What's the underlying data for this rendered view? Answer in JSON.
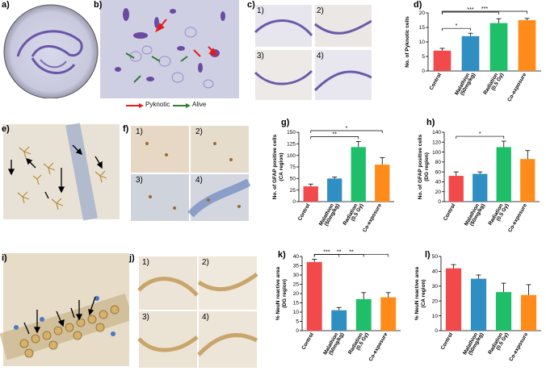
{
  "panel_labels": {
    "a": "a)",
    "b": "b)",
    "c": "c)",
    "d": "d)",
    "e": "e)",
    "f": "f)",
    "g": "g)",
    "h": "h)",
    "i": "i)",
    "j": "j)",
    "k": "k)",
    "l": "l)"
  },
  "sub_labels": {
    "s1": "1)",
    "s2": "2)",
    "s3": "3)",
    "s4": "4)"
  },
  "legend_b": {
    "pyknotic": "Pyknotic",
    "alive": "Alive"
  },
  "colors": {
    "control": "#f24a4a",
    "malathion": "#2f8ec2",
    "radiation": "#1fbf6a",
    "coexposure": "#ff8c1a",
    "pyknotic_arrow": "#e31b1b",
    "alive_arrow": "#2e7d32",
    "stain_purple": "#7a5ca8",
    "dab_brown": "#9c6b30"
  },
  "icons": {
    "arrow": "arrow-icon"
  },
  "chart_data": [
    {
      "id": "d",
      "type": "bar",
      "categories": [
        "Control",
        "Malathion\n(50mg/kg)",
        "Radiation\n(0.5 Gy)",
        "Co-exposure"
      ],
      "values": [
        7,
        12,
        16.5,
        17.5
      ],
      "errors": [
        0.8,
        1.0,
        1.5,
        0.6
      ],
      "ylabel": "No. of Pyknotic cells",
      "ylim": [
        0,
        20
      ],
      "yticks": [
        0,
        5,
        10,
        15,
        20
      ],
      "significance": [
        {
          "from": 0,
          "to": 1,
          "label": "*"
        },
        {
          "from": 0,
          "to": 2,
          "label": "***"
        },
        {
          "from": 0,
          "to": 3,
          "label": "***"
        }
      ]
    },
    {
      "id": "g",
      "type": "bar",
      "categories": [
        "Control",
        "Malathion\n(50mg/kg)",
        "Radiation\n(0.5 Gy)",
        "Co-exposure"
      ],
      "values": [
        33,
        50,
        118,
        80
      ],
      "errors": [
        5,
        3,
        12,
        15
      ],
      "ylabel": "No. of GFAP positive cells\n(CA region)",
      "ylim": [
        0,
        150
      ],
      "yticks": [
        0,
        25,
        50,
        75,
        100,
        125,
        150
      ],
      "significance": [
        {
          "from": 0,
          "to": 2,
          "label": "**"
        },
        {
          "from": 0,
          "to": 3,
          "label": "*"
        }
      ]
    },
    {
      "id": "h",
      "type": "bar",
      "categories": [
        "Control",
        "Malathion\n(50mg/kg)",
        "Radiation\n(0.5 Gy)",
        "Co-exposure"
      ],
      "values": [
        52,
        56,
        110,
        86
      ],
      "errors": [
        8,
        4,
        12,
        17
      ],
      "ylabel": "No. of GFAP positive cells\n(DG region)",
      "ylim": [
        0,
        140
      ],
      "yticks": [
        0,
        20,
        40,
        60,
        80,
        100,
        120,
        140
      ],
      "significance": [
        {
          "from": 0,
          "to": 2,
          "label": "*"
        }
      ]
    },
    {
      "id": "k",
      "type": "bar",
      "categories": [
        "Control",
        "Malathion\n(50mg/kg)",
        "Radiation\n(0.5 Gy)",
        "Co-exposure"
      ],
      "values": [
        37,
        11,
        17,
        18
      ],
      "errors": [
        1.5,
        1.5,
        3.5,
        2.5
      ],
      "ylabel": "% NeuN reactive area\n(DG region)",
      "ylim": [
        0,
        40
      ],
      "yticks": [
        0,
        5,
        10,
        15,
        20,
        25,
        30,
        35,
        40
      ],
      "significance": [
        {
          "from": 0,
          "to": 1,
          "label": "***"
        },
        {
          "from": 0,
          "to": 2,
          "label": "**"
        },
        {
          "from": 0,
          "to": 3,
          "label": "**"
        }
      ]
    },
    {
      "id": "l",
      "type": "bar",
      "categories": [
        "Control",
        "Malathion\n(50mg/kg)",
        "Radiation\n(0.5 Gy)",
        "Co-exposure"
      ],
      "values": [
        42,
        35,
        26,
        24
      ],
      "errors": [
        2.5,
        2.5,
        6,
        7
      ],
      "ylabel": "% NeuN reactive area\n(CA region)",
      "ylim": [
        0,
        50
      ],
      "yticks": [
        0,
        10,
        20,
        30,
        40,
        50
      ],
      "significance": []
    }
  ]
}
